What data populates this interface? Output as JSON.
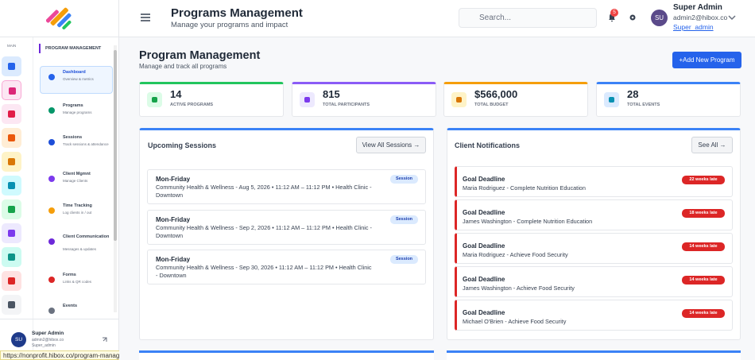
{
  "header": {
    "title": "Programs Management",
    "subtitle": "Manage your programs and impact",
    "search_placeholder": "Search...",
    "notification_count": 5,
    "user": {
      "initials": "SU",
      "name": "Super Admin",
      "email": "admin2@hibox.co",
      "role": "Super_admin"
    }
  },
  "sidebar": {
    "section": "MAIN",
    "panel_title": "PROGRAM MANAGEMENT",
    "items": [
      {
        "title": "Dashboard",
        "description": "Overview & metrics"
      },
      {
        "title": "Programs",
        "description": "Manage programs"
      },
      {
        "title": "Sessions",
        "description": "Track sessions & attendance"
      },
      {
        "title": "Client Mgmnt",
        "description": "Manage Clients"
      },
      {
        "title": "Time Tracking",
        "description": "Log clients in / out"
      },
      {
        "title": "Client Communication",
        "description": "Messages & updates"
      },
      {
        "title": "Forms",
        "description": "Links & QR codes"
      },
      {
        "title": "Events"
      }
    ],
    "user": {
      "initials": "SU",
      "name": "Super Admin",
      "email": "admin2@hibox.co",
      "role": "Super_admin"
    }
  },
  "page": {
    "title": "Program Management",
    "subtitle": "Manage and track all programs",
    "button": "+Add New Program",
    "stats": [
      {
        "value": 14,
        "label": "ACTIVE PROGRAMS"
      },
      {
        "value": 815,
        "label": "TOTAL PARTICIPANTS"
      },
      {
        "value": "$566,000",
        "label": "TOTAL BUDGET"
      },
      {
        "value": 28,
        "label": "TOTAL EVENTS"
      }
    ],
    "sessions": {
      "title": "Upcoming Sessions",
      "button": "View All Sessions →",
      "items": [
        {
          "day": "Mon-Friday",
          "detail": "Community Health & Wellness - Aug 5, 2026 • 11:12 AM – 11:12 PM • Health Clinic - Downtown",
          "badge": "Session"
        },
        {
          "day": "Mon-Friday",
          "detail": "Community Health & Wellness - Sep 2, 2026 • 11:12 AM – 11:12 PM • Health Clinic - Downtown",
          "badge": "Session"
        },
        {
          "day": "Mon-Friday",
          "detail": "Community Health & Wellness - Sep 30, 2026 • 11:12 AM – 11:12 PM • Health Clinic - Downtown",
          "badge": "Session"
        }
      ]
    },
    "notifications": {
      "title": "Client Notifications",
      "button": "See All →",
      "items": [
        {
          "title": "Goal Deadline",
          "detail": "Maria Rodriguez - Complete Nutrition Education",
          "badge": "22 weeks late"
        },
        {
          "title": "Goal Deadline",
          "detail": "James Washington - Complete Nutrition Education",
          "badge": "18 weeks late"
        },
        {
          "title": "Goal Deadline",
          "detail": "Maria Rodriguez - Achieve Food Security",
          "badge": "14 weeks late"
        },
        {
          "title": "Goal Deadline",
          "detail": "James Washington - Achieve Food Security",
          "badge": "14 weeks late"
        },
        {
          "title": "Goal Deadline",
          "detail": "Michael O'Brien - Achieve Food Security",
          "badge": "14 weeks late"
        }
      ]
    }
  },
  "status_url": "https://nonprofit.hibox.co/program-management"
}
